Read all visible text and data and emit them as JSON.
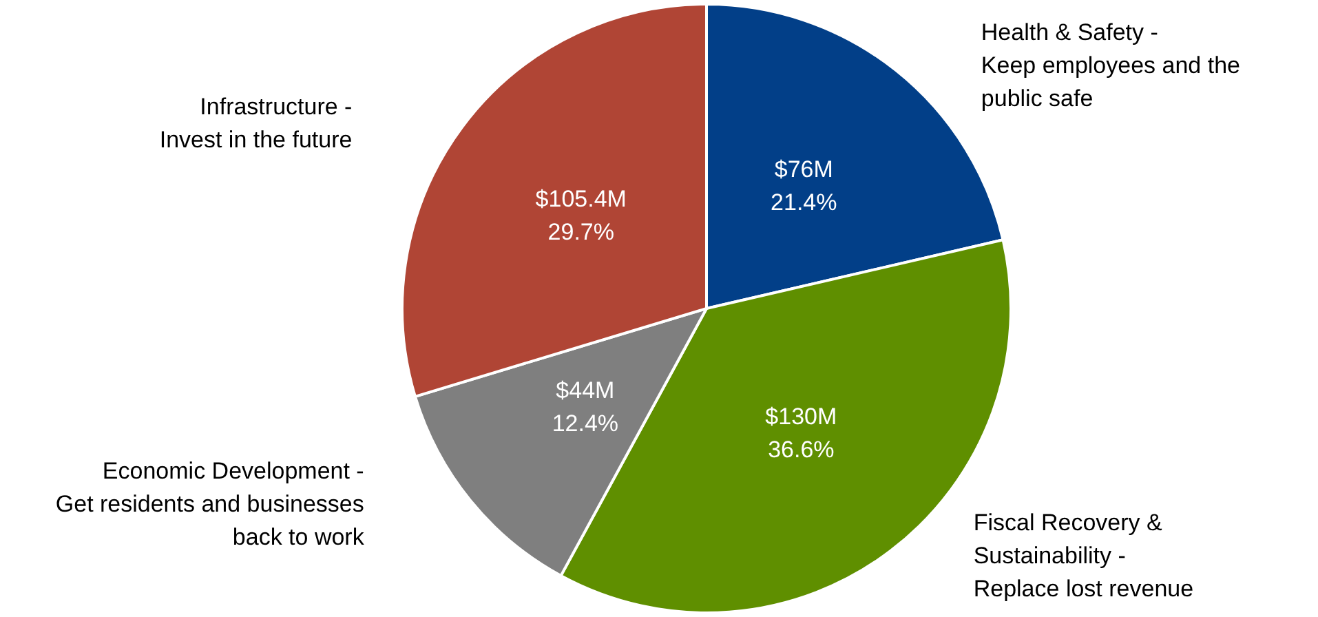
{
  "chart_data": {
    "type": "pie",
    "categories": [
      "Health & Safety -\nKeep employees and the\npublic safe",
      "Fiscal Recovery &\nSustainability -\nReplace lost revenue",
      "Economic Development -\nGet residents and businesses\nback to work",
      "Infrastructure -\nInvest in the future"
    ],
    "values": [
      21.4,
      36.6,
      12.4,
      29.7
    ],
    "colors": [
      "#023f88",
      "#5f8f00",
      "#7f7f7f",
      "#b04535"
    ],
    "value_labels": [
      "$76M\n21.4%",
      "$130M\n36.6%",
      "$44M\n12.4%",
      "$105.4M\n29.7%"
    ],
    "legend": false
  }
}
